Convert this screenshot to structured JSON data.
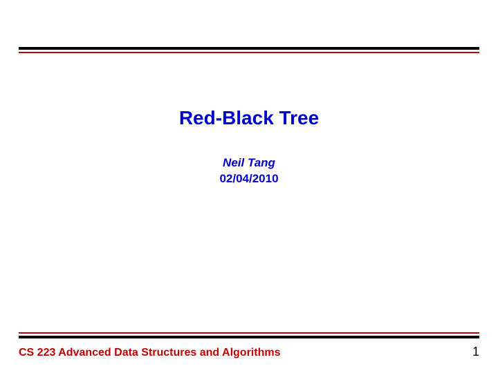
{
  "slide": {
    "title": "Red-Black Tree",
    "author": "Neil Tang",
    "date": "02/04/2010",
    "footer_course": "CS 223 Advanced Data Structures and Algorithms",
    "page_number": "1"
  },
  "styles": {
    "title_color": "#0000cc",
    "title_fontsize": 28,
    "author_color": "#0000cc",
    "author_fontsize": 17,
    "date_color": "#0000cc",
    "date_fontsize": 17,
    "footer_color": "#c00000",
    "footer_fontsize": 16,
    "page_number_color": "#000000",
    "page_number_fontsize": 18,
    "rule_thick_color": "#000000",
    "rule_thick_width": 4,
    "rule_thin_color": "#c00000",
    "rule_thin_width": 2,
    "rule_gap": 3,
    "background_color": "#ffffff"
  }
}
